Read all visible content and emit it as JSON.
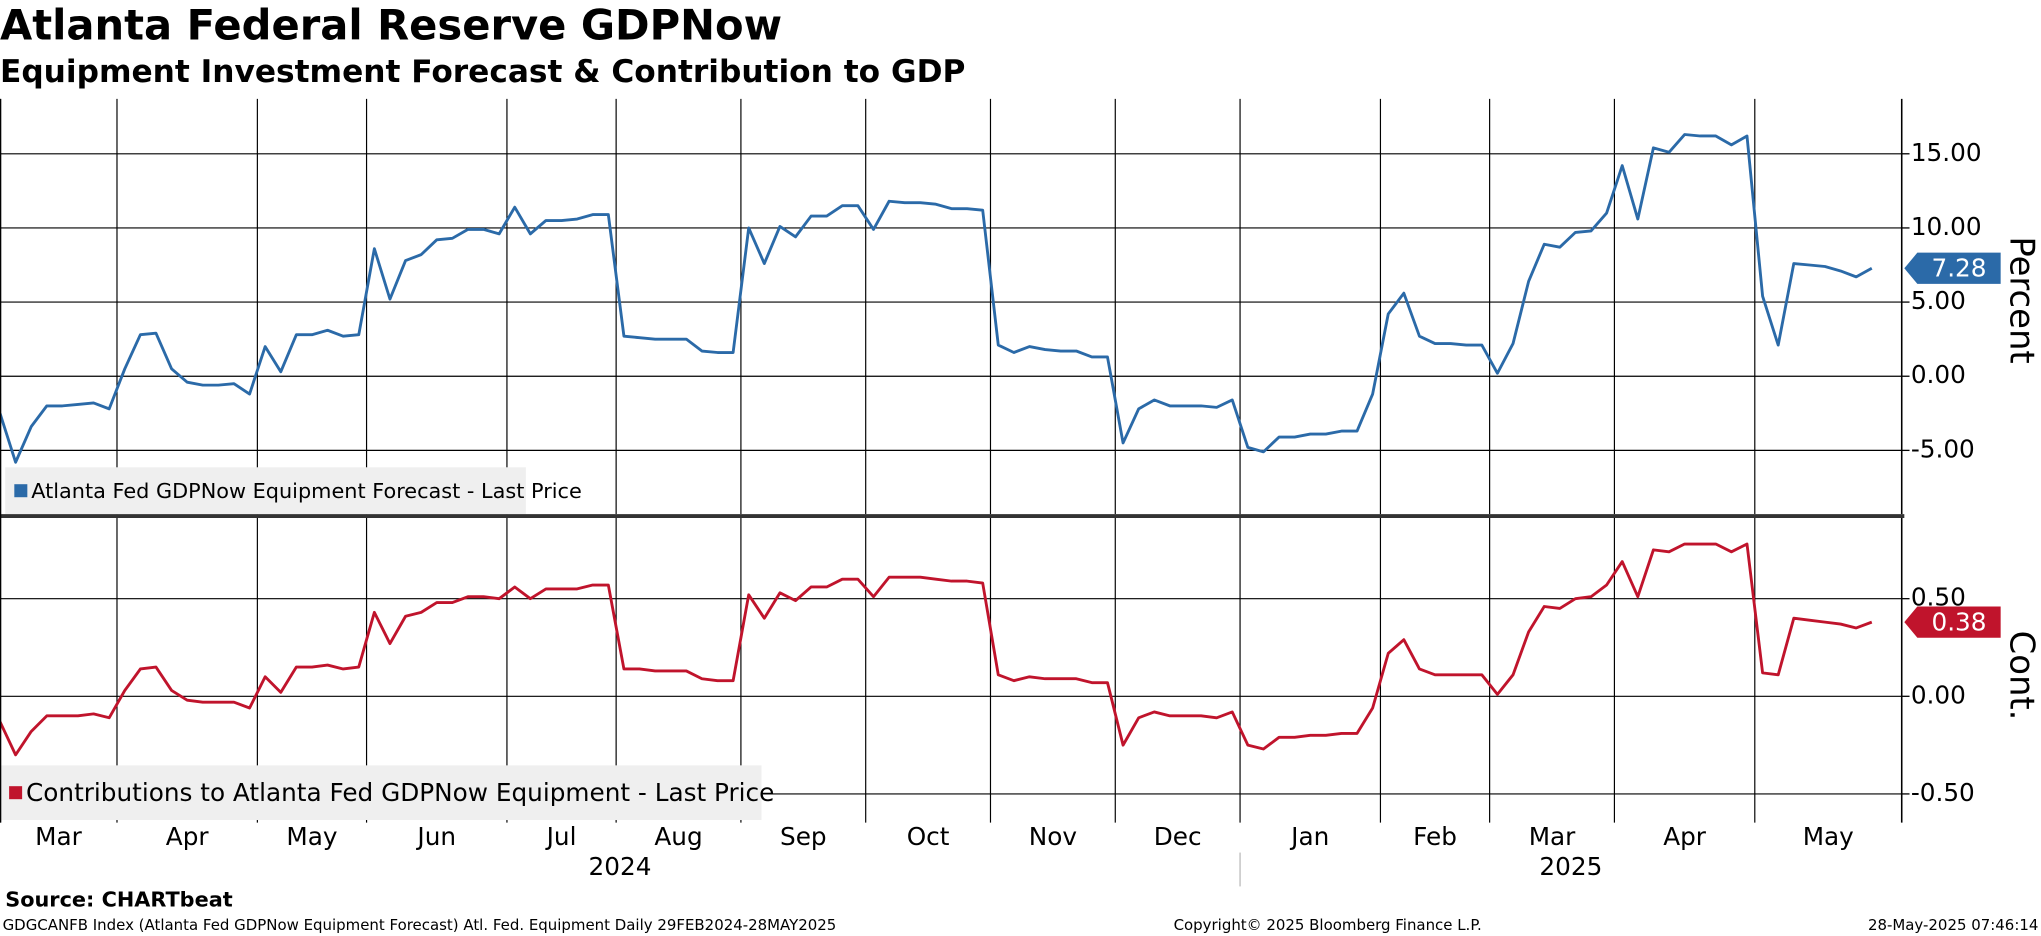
{
  "title": "Atlanta Federal Reserve GDPNow",
  "subtitle": "Equipment Investment Forecast & Contribution to GDP",
  "chart_data": [
    {
      "type": "line",
      "y_label": "Percent",
      "ylim": [
        -9.3,
        18.7
      ],
      "yticks": [
        {
          "value": -5,
          "label": "-5.00"
        },
        {
          "value": 0,
          "label": "0.00"
        },
        {
          "value": 5,
          "label": "5.00"
        },
        {
          "value": 10,
          "label": "10.00"
        },
        {
          "value": 15,
          "label": "15.00"
        }
      ],
      "grid": true,
      "series": [
        {
          "name": "Atlanta Fed GDPNow Equipment Forecast - Last Price",
          "color": "#2b6aa8",
          "values": [
            -2.5,
            -5.8,
            -3.4,
            -2.0,
            -2.0,
            -1.9,
            -1.8,
            -2.2,
            0.5,
            2.8,
            2.9,
            0.5,
            -0.4,
            -0.6,
            -0.6,
            -0.5,
            -1.2,
            2.0,
            0.3,
            2.8,
            2.8,
            3.1,
            2.7,
            2.8,
            8.6,
            5.2,
            7.8,
            8.2,
            9.2,
            9.3,
            9.9,
            9.9,
            9.6,
            11.4,
            9.6,
            10.5,
            10.5,
            10.6,
            10.9,
            10.9,
            2.7,
            2.6,
            2.5,
            2.5,
            2.5,
            1.7,
            1.6,
            1.6,
            10.0,
            7.6,
            10.1,
            9.4,
            10.8,
            10.8,
            11.5,
            11.5,
            9.9,
            11.8,
            11.7,
            11.7,
            11.6,
            11.3,
            11.3,
            11.2,
            2.1,
            1.6,
            2.0,
            1.8,
            1.7,
            1.7,
            1.3,
            1.3,
            -4.5,
            -2.2,
            -1.6,
            -2.0,
            -2.0,
            -2.0,
            -2.1,
            -1.6,
            -4.8,
            -5.1,
            -4.1,
            -4.1,
            -3.9,
            -3.9,
            -3.7,
            -3.7,
            -1.2,
            4.2,
            5.6,
            2.7,
            2.2,
            2.2,
            2.1,
            2.1,
            0.2,
            2.2,
            6.4,
            8.9,
            8.7,
            9.7,
            9.8,
            11.0,
            14.2,
            10.6,
            15.4,
            15.1,
            16.3,
            16.2,
            16.2,
            15.6,
            16.2,
            5.4,
            2.1,
            7.6,
            7.5,
            7.4,
            7.1,
            6.7,
            7.28
          ]
        }
      ]
    },
    {
      "type": "line",
      "y_label": "Cont.",
      "ylim": [
        -0.647,
        0.913
      ],
      "yticks": [
        {
          "value": -0.5,
          "label": "-0.50"
        },
        {
          "value": 0,
          "label": "0.00"
        },
        {
          "value": 0.5,
          "label": "0.50"
        }
      ],
      "grid": true,
      "categories": [
        "Mar",
        null,
        null,
        null,
        null,
        null,
        null,
        null,
        "Apr",
        null,
        null,
        null,
        null,
        null,
        null,
        null,
        null,
        "May",
        null,
        null,
        null,
        null,
        null,
        null,
        "Jun",
        null,
        null,
        null,
        null,
        null,
        null,
        null,
        null,
        "Jul",
        null,
        null,
        null,
        null,
        null,
        null,
        "Aug",
        null,
        null,
        null,
        null,
        null,
        null,
        null,
        "Sep",
        null,
        null,
        null,
        null,
        null,
        null,
        null,
        "Oct",
        null,
        null,
        null,
        null,
        null,
        null,
        null,
        "Nov",
        null,
        null,
        null,
        null,
        null,
        null,
        null,
        "Dec",
        null,
        null,
        null,
        null,
        null,
        null,
        null,
        "Jan",
        null,
        null,
        null,
        null,
        null,
        null,
        null,
        null,
        "Feb",
        null,
        null,
        null,
        null,
        null,
        null,
        "Mar",
        null,
        null,
        null,
        null,
        null,
        null,
        null,
        "Apr",
        null,
        null,
        null,
        null,
        null,
        null,
        null,
        null,
        "May",
        null,
        null,
        null,
        null,
        null,
        null,
        null
      ],
      "category_groups": [
        "2024",
        null,
        null,
        null,
        null,
        null,
        null,
        null,
        null,
        null,
        null,
        null,
        null,
        null,
        null,
        null,
        null,
        null,
        null,
        null,
        null,
        null,
        null,
        null,
        null,
        null,
        null,
        null,
        null,
        null,
        null,
        null,
        null,
        null,
        null,
        null,
        null,
        null,
        null,
        null,
        null,
        null,
        null,
        null,
        null,
        null,
        null,
        null,
        null,
        null,
        null,
        null,
        null,
        null,
        null,
        null,
        null,
        null,
        null,
        null,
        null,
        null,
        null,
        null,
        null,
        null,
        null,
        null,
        null,
        null,
        null,
        null,
        null,
        null,
        null,
        null,
        null,
        null,
        null,
        null,
        "2025",
        null,
        null,
        null,
        null,
        null,
        null,
        null,
        null,
        null,
        null,
        null,
        null,
        null,
        null,
        null,
        null,
        null,
        null,
        null,
        null,
        null,
        null,
        null,
        null,
        null,
        null,
        null,
        null,
        null,
        null,
        null,
        null,
        null,
        null,
        null,
        null,
        null,
        null,
        null,
        null
      ],
      "series": [
        {
          "name": "Contributions to Atlanta Fed GDPNow Equipment - Last Price",
          "color": "#c0142c",
          "values": [
            -0.13,
            -0.3,
            -0.18,
            -0.1,
            -0.1,
            -0.1,
            -0.09,
            -0.11,
            0.03,
            0.14,
            0.15,
            0.03,
            -0.02,
            -0.03,
            -0.03,
            -0.03,
            -0.06,
            0.1,
            0.02,
            0.15,
            0.15,
            0.16,
            0.14,
            0.15,
            0.43,
            0.27,
            0.41,
            0.43,
            0.48,
            0.48,
            0.51,
            0.51,
            0.5,
            0.56,
            0.5,
            0.55,
            0.55,
            0.55,
            0.57,
            0.57,
            0.14,
            0.14,
            0.13,
            0.13,
            0.13,
            0.09,
            0.08,
            0.08,
            0.52,
            0.4,
            0.53,
            0.49,
            0.56,
            0.56,
            0.6,
            0.6,
            0.51,
            0.61,
            0.61,
            0.61,
            0.6,
            0.59,
            0.59,
            0.58,
            0.11,
            0.08,
            0.1,
            0.09,
            0.09,
            0.09,
            0.07,
            0.07,
            -0.25,
            -0.11,
            -0.08,
            -0.1,
            -0.1,
            -0.1,
            -0.11,
            -0.08,
            -0.25,
            -0.27,
            -0.21,
            -0.21,
            -0.2,
            -0.2,
            -0.19,
            -0.19,
            -0.06,
            0.22,
            0.29,
            0.14,
            0.11,
            0.11,
            0.11,
            0.11,
            0.01,
            0.11,
            0.33,
            0.46,
            0.45,
            0.5,
            0.51,
            0.57,
            0.69,
            0.51,
            0.75,
            0.74,
            0.78,
            0.78,
            0.78,
            0.74,
            0.78,
            0.12,
            0.11,
            0.4,
            0.39,
            0.38,
            0.37,
            0.35,
            0.38
          ]
        }
      ]
    }
  ],
  "footer": {
    "source": "Source: CHARTbeat",
    "description": "GDGCANFB Index (Atlanta Fed GDPNow Equipment Forecast) Atl. Fed. Equipment  Daily 29FEB2024-28MAY2025",
    "copyright": "Copyright© 2025 Bloomberg Finance L.P.",
    "timestamp": "28-May-2025 07:46:14"
  }
}
